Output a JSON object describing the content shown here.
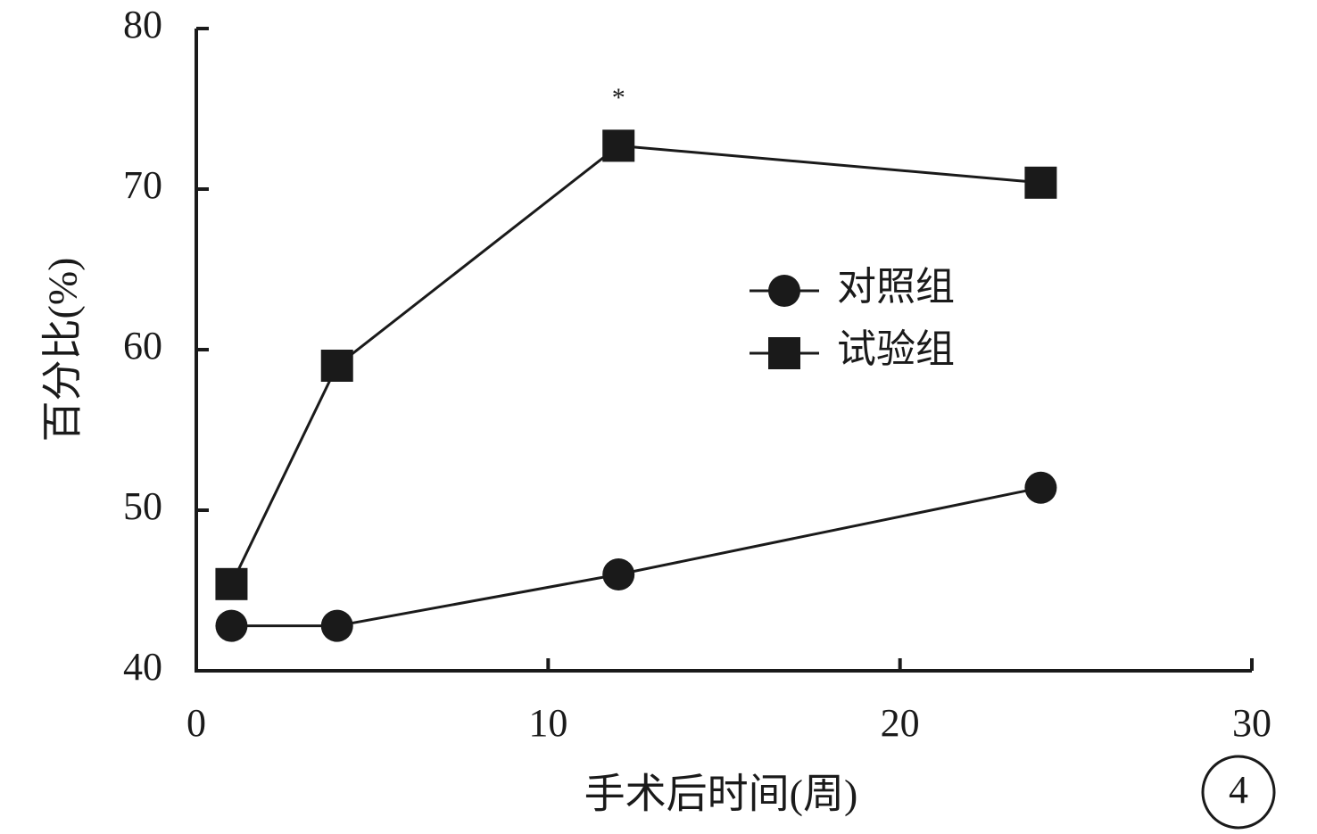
{
  "chart_data": {
    "type": "line",
    "x_label": "手术后时间(周)",
    "y_label": "百分比(%)",
    "x": [
      1,
      4,
      12,
      24
    ],
    "series": [
      {
        "name": "对照组",
        "color": "#1a1a1a",
        "marker": "circle",
        "values": [
          42.8,
          42.8,
          46,
          51.4
        ]
      },
      {
        "name": "试验组",
        "color": "#1a1a1a",
        "marker": "square",
        "values": [
          45.4,
          59,
          72.7,
          70.4
        ]
      }
    ],
    "xlim": [
      0,
      30
    ],
    "xticks": [
      0,
      10,
      20,
      30
    ],
    "ylim": [
      40,
      80
    ],
    "yticks": [
      40,
      50,
      60,
      70,
      80
    ],
    "annotations": [
      {
        "text": "*",
        "x": 12,
        "y": 76
      }
    ],
    "legend": "upper right",
    "panel_label": "4"
  }
}
